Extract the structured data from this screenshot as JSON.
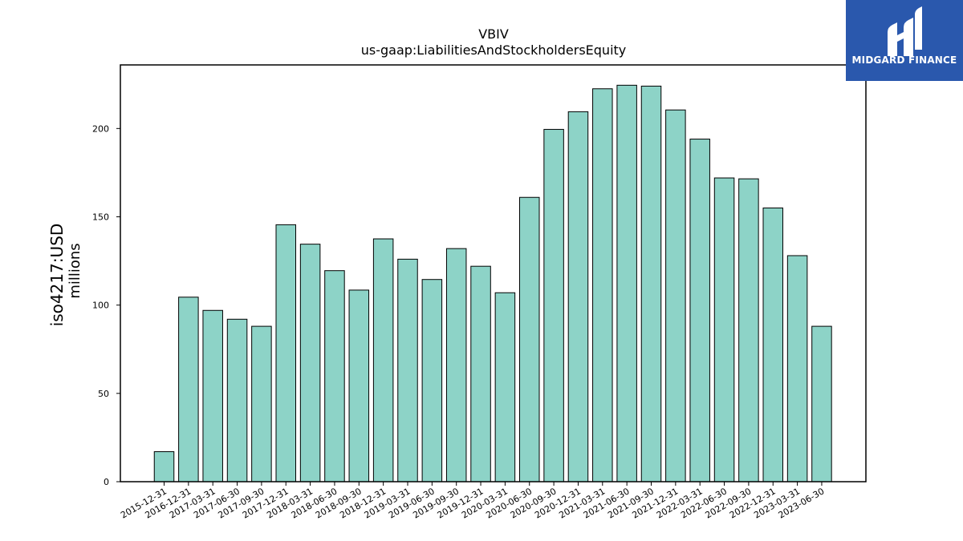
{
  "logo": {
    "text": "MIDGARD FINANCE"
  },
  "chart_data": {
    "type": "bar",
    "title": "VBIV",
    "subtitle": "us-gaap:LiabilitiesAndStockholdersEquity",
    "ylabel": "iso4217:USD",
    "ylabel_units": "millions",
    "ylim": [
      0,
      236
    ],
    "yticks": [
      0,
      50,
      100,
      150,
      200
    ],
    "grid": false,
    "bar_color": "#8dd3c7",
    "categories": [
      "2015-12-31",
      "2016-12-31",
      "2017-03-31",
      "2017-06-30",
      "2017-09-30",
      "2017-12-31",
      "2018-03-31",
      "2018-06-30",
      "2018-09-30",
      "2018-12-31",
      "2019-03-31",
      "2019-06-30",
      "2019-09-30",
      "2019-12-31",
      "2020-03-31",
      "2020-06-30",
      "2020-09-30",
      "2020-12-31",
      "2021-03-31",
      "2021-06-30",
      "2021-09-30",
      "2021-12-31",
      "2022-03-31",
      "2022-06-30",
      "2022-09-30",
      "2022-12-31",
      "2023-03-31",
      "2023-06-30"
    ],
    "values": [
      17,
      104.5,
      97,
      92,
      88,
      145.5,
      134.5,
      119.5,
      108.5,
      137.5,
      126,
      114.5,
      132,
      122,
      107,
      161,
      199.5,
      209.5,
      222.5,
      224.5,
      224,
      210.5,
      194,
      172,
      171.5,
      155,
      128,
      88
    ]
  }
}
